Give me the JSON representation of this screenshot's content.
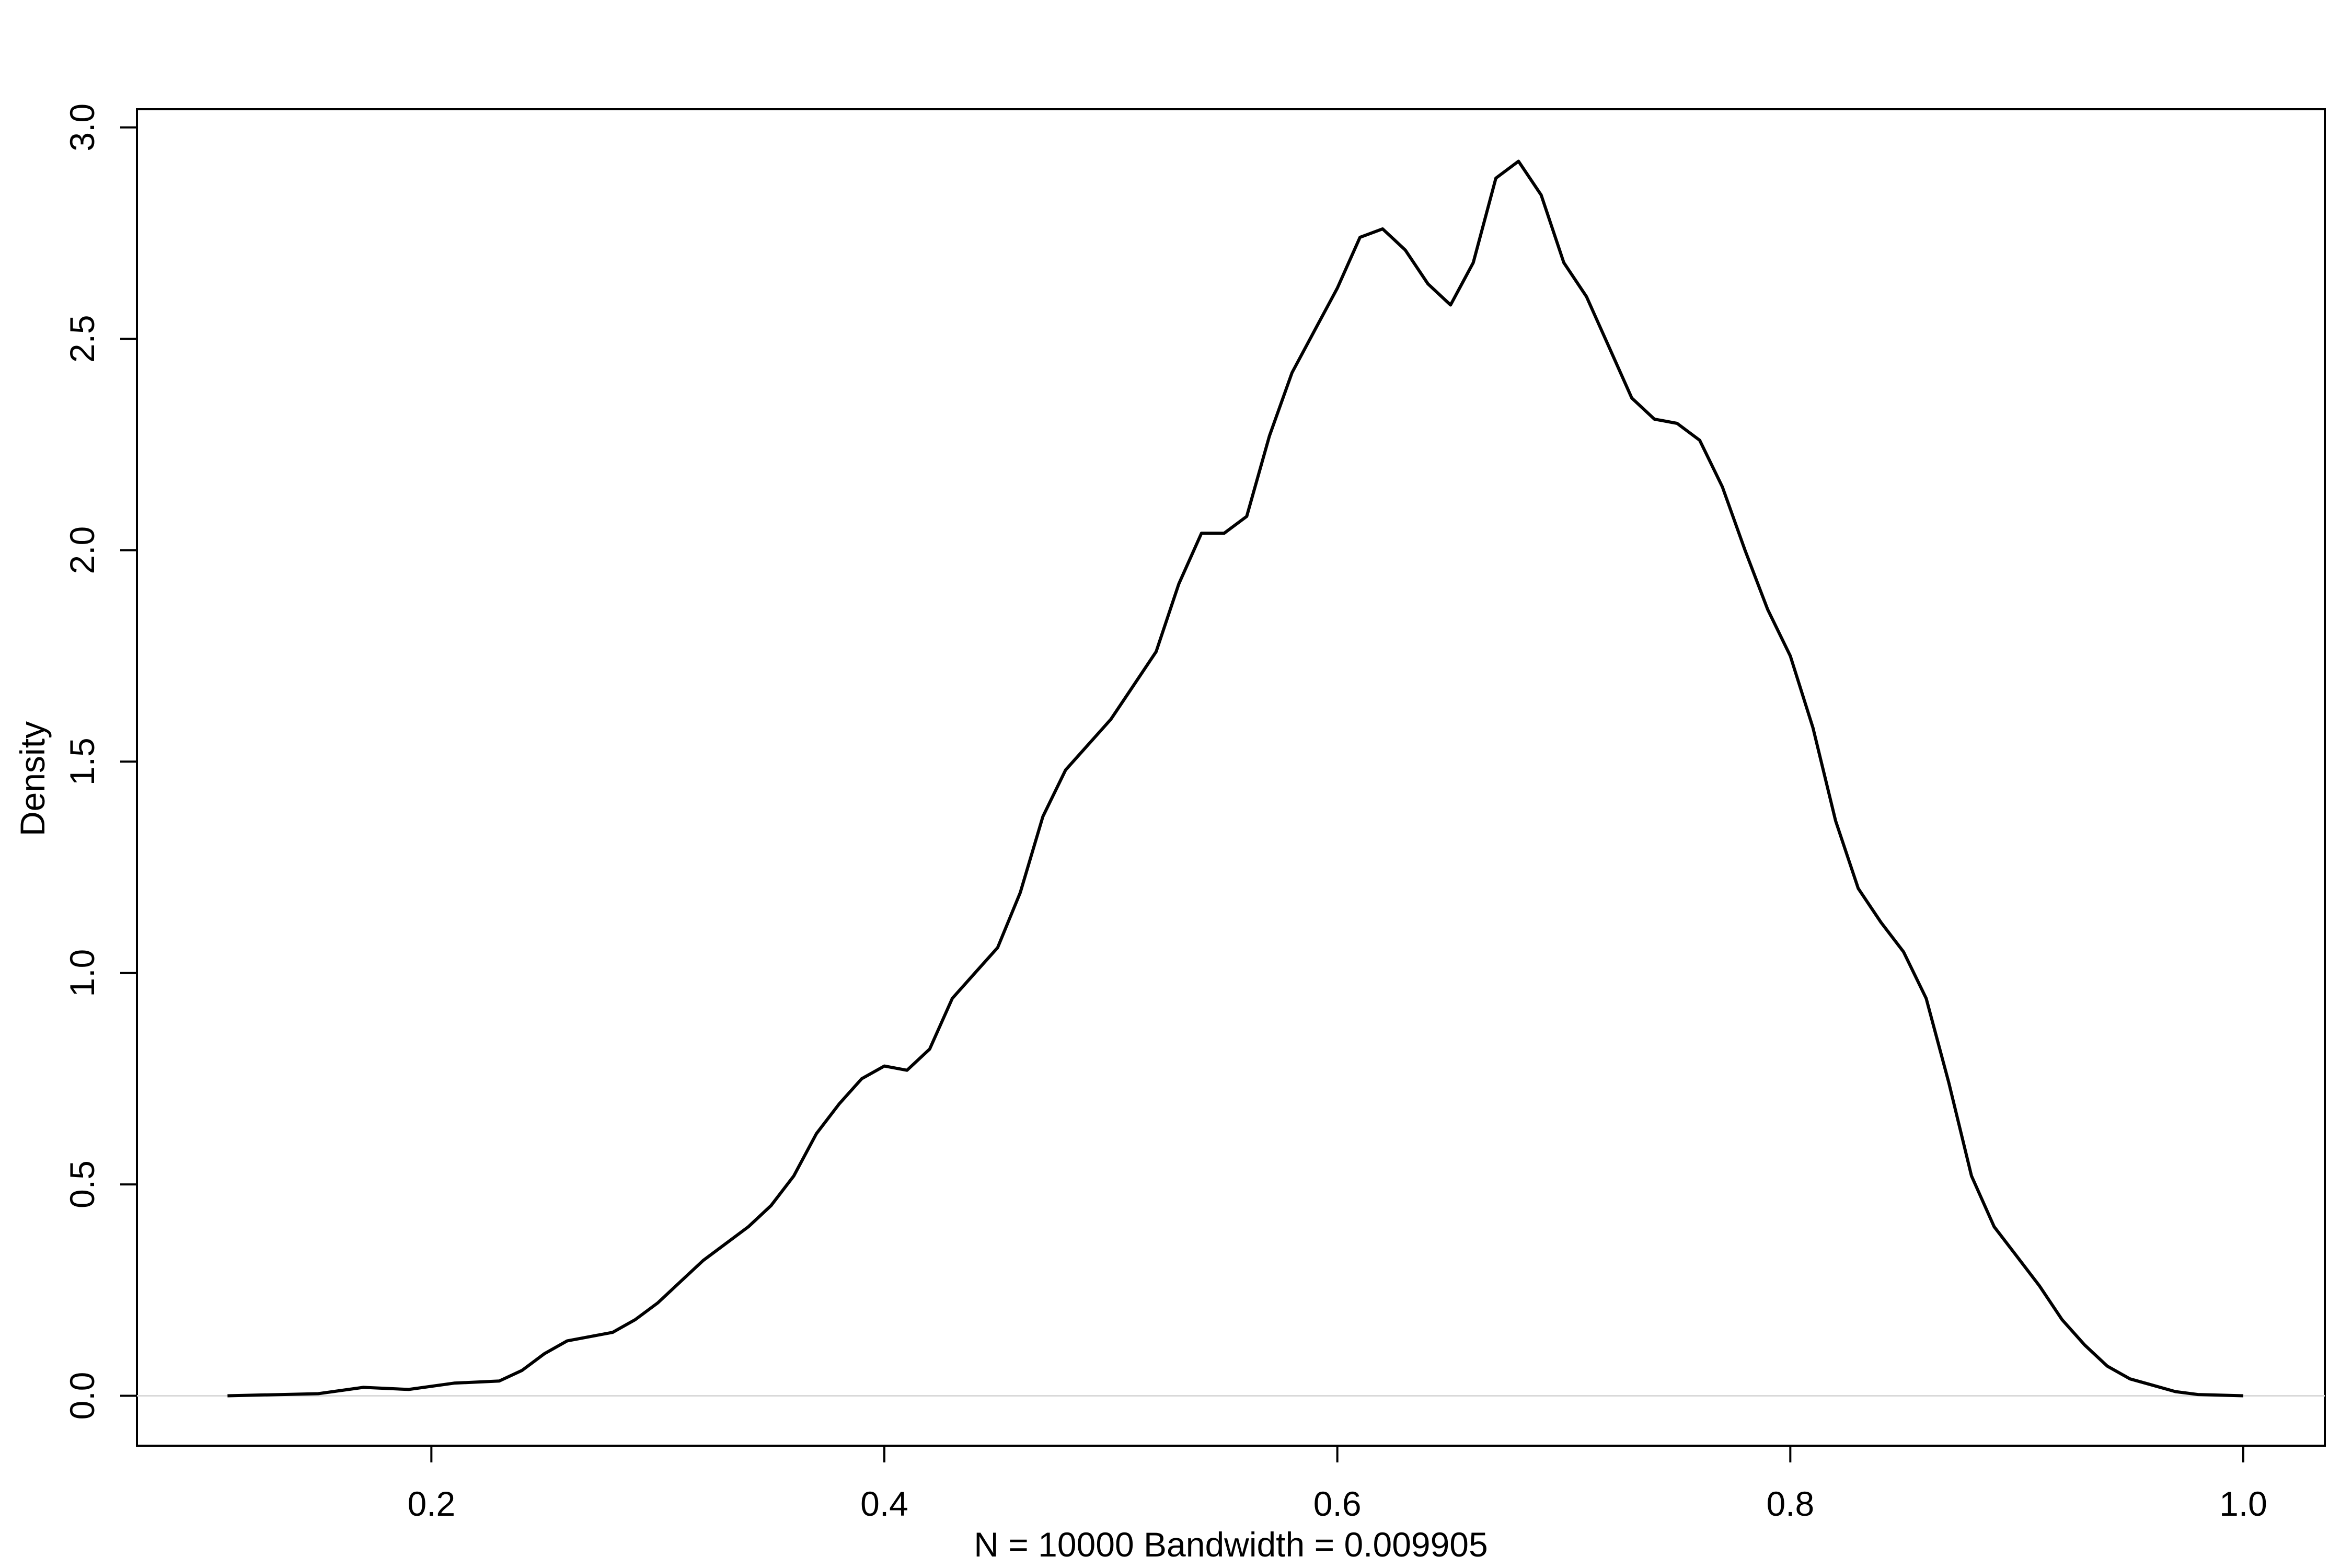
{
  "chart_data": {
    "type": "line",
    "x_label": "N = 10000   Bandwidth = 0.009905",
    "y_label": "Density",
    "x": [
      0.11,
      0.15,
      0.17,
      0.19,
      0.21,
      0.23,
      0.24,
      0.25,
      0.26,
      0.27,
      0.28,
      0.29,
      0.3,
      0.31,
      0.32,
      0.33,
      0.34,
      0.35,
      0.36,
      0.37,
      0.38,
      0.39,
      0.4,
      0.41,
      0.42,
      0.43,
      0.44,
      0.45,
      0.46,
      0.47,
      0.48,
      0.49,
      0.5,
      0.51,
      0.52,
      0.53,
      0.54,
      0.55,
      0.56,
      0.57,
      0.58,
      0.59,
      0.6,
      0.61,
      0.62,
      0.63,
      0.64,
      0.65,
      0.66,
      0.67,
      0.68,
      0.69,
      0.7,
      0.71,
      0.72,
      0.73,
      0.74,
      0.75,
      0.76,
      0.77,
      0.78,
      0.79,
      0.8,
      0.81,
      0.82,
      0.83,
      0.84,
      0.85,
      0.86,
      0.87,
      0.88,
      0.89,
      0.9,
      0.91,
      0.92,
      0.93,
      0.94,
      0.95,
      0.96,
      0.97,
      0.98,
      1.0
    ],
    "series": [
      {
        "color": "#000000",
        "values": [
          0,
          0.005,
          0.02,
          0.015,
          0.03,
          0.035,
          0.06,
          0.1,
          0.13,
          0.14,
          0.15,
          0.18,
          0.22,
          0.27,
          0.32,
          0.36,
          0.4,
          0.45,
          0.52,
          0.62,
          0.69,
          0.75,
          0.78,
          0.77,
          0.82,
          0.94,
          1.0,
          1.06,
          1.19,
          1.37,
          1.48,
          1.54,
          1.6,
          1.68,
          1.76,
          1.92,
          2.04,
          2.04,
          2.08,
          2.27,
          2.42,
          2.52,
          2.62,
          2.74,
          2.76,
          2.71,
          2.63,
          2.58,
          2.68,
          2.88,
          2.92,
          2.84,
          2.68,
          2.6,
          2.48,
          2.36,
          2.31,
          2.3,
          2.26,
          2.15,
          2.0,
          1.86,
          1.75,
          1.58,
          1.36,
          1.2,
          1.12,
          1.05,
          0.94,
          0.74,
          0.52,
          0.4,
          0.33,
          0.26,
          0.18,
          0.12,
          0.07,
          0.04,
          0.025,
          0.01,
          0.003,
          0
        ]
      }
    ],
    "xlim": [
      0.07,
      1.036
    ],
    "ylim": [
      -0.118,
      3.043
    ],
    "xticks": [
      0.2,
      0.4,
      0.6,
      0.8,
      {
        "value": 1.0,
        "label": "1.0"
      }
    ],
    "yticks": [
      {
        "value": 0,
        "label": "0.0"
      },
      0.5,
      {
        "value": 1,
        "label": "1.0"
      },
      1.5,
      {
        "value": 2,
        "label": "2.0"
      },
      2.5,
      {
        "value": 3,
        "label": "3.0"
      }
    ],
    "zero_line": true
  }
}
